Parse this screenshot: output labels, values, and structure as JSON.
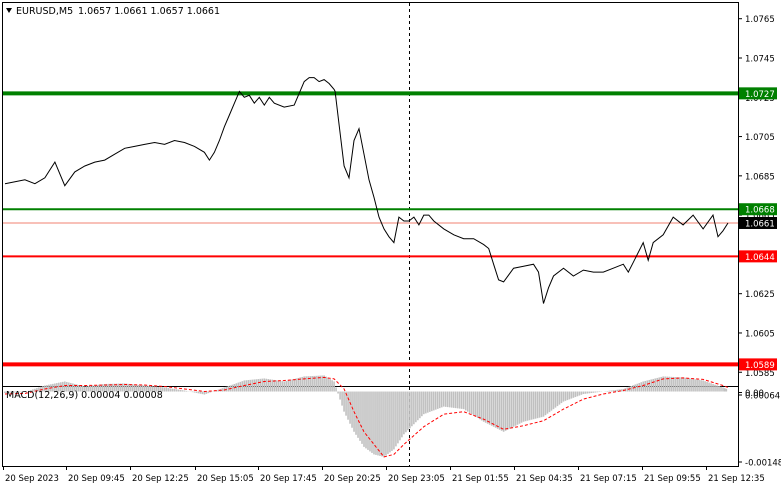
{
  "header": {
    "symbol_label": "EURUSD,M5",
    "ohlc_label": "1.0657 1.0661 1.0657 1.0661"
  },
  "colors": {
    "background": "#ffffff",
    "price_line": "#000000",
    "green_level": "#008000",
    "red_level": "#ff0000",
    "bid_line": "#f08070",
    "macd_hist": "#c0c0c0",
    "macd_signal": "#ff0000",
    "axis_text": "#000000",
    "separator": "#000000"
  },
  "chart_data": [
    {
      "type": "line",
      "panel": "price",
      "y_range": [
        1.0578,
        1.0773
      ],
      "price_ticks": [
        "1.0765",
        "1.0745",
        "1.0725",
        "1.0705",
        "1.0685",
        "1.0665",
        "1.0645",
        "1.0625",
        "1.0605",
        "1.0585"
      ],
      "levels": [
        {
          "label": "1.0727",
          "value": 1.0727,
          "color": "green",
          "weight": "thick"
        },
        {
          "label": "1.0668",
          "value": 1.0668,
          "color": "green",
          "weight": "thin"
        },
        {
          "label": "1.0644",
          "value": 1.0644,
          "color": "red",
          "weight": "thin"
        },
        {
          "label": "1.0589",
          "value": 1.0589,
          "color": "red",
          "weight": "thick"
        }
      ],
      "bid": {
        "label": "1.0661",
        "value": 1.0661
      },
      "x_index": [
        0,
        10,
        20,
        30,
        40,
        45,
        50,
        60,
        70,
        80,
        90,
        100,
        110,
        120,
        130,
        140,
        150,
        160,
        170,
        180,
        190,
        200,
        205,
        210,
        215,
        220,
        225,
        230,
        235,
        240,
        245,
        250,
        255,
        260,
        265,
        270,
        280,
        290,
        295,
        300,
        305,
        310,
        315,
        320,
        325,
        330,
        331,
        335,
        340,
        345,
        350,
        355,
        360,
        365,
        370,
        375,
        380,
        385,
        390,
        395,
        400,
        405,
        410,
        415,
        420,
        425,
        430,
        440,
        450,
        460,
        470,
        480,
        485,
        490,
        495,
        500,
        510,
        520,
        530,
        535,
        540,
        545,
        550,
        560,
        570,
        580,
        590,
        600,
        610,
        620,
        625,
        630,
        640,
        645,
        650,
        660,
        670,
        680,
        690,
        700,
        710,
        715,
        720,
        725
      ],
      "price": [
        1.0681,
        1.0682,
        1.0683,
        1.0681,
        1.0684,
        1.0688,
        1.0692,
        1.068,
        1.0687,
        1.069,
        1.0692,
        1.0693,
        1.0696,
        1.0699,
        1.07,
        1.0701,
        1.0702,
        1.0701,
        1.0703,
        1.0702,
        1.07,
        1.0697,
        1.0693,
        1.0697,
        1.0703,
        1.071,
        1.0716,
        1.0722,
        1.0728,
        1.0725,
        1.0726,
        1.0722,
        1.0725,
        1.0721,
        1.0725,
        1.0722,
        1.072,
        1.0721,
        1.0727,
        1.0733,
        1.0735,
        1.0735,
        1.0733,
        1.0734,
        1.0732,
        1.0729,
        1.0728,
        1.0711,
        1.069,
        1.0684,
        1.0703,
        1.0709,
        1.0696,
        1.0683,
        1.0674,
        1.0664,
        1.0658,
        1.0654,
        1.0651,
        1.0664,
        1.0662,
        1.0662,
        1.0664,
        1.066,
        1.0665,
        1.0665,
        1.0662,
        1.0658,
        1.0655,
        1.0653,
        1.0653,
        1.065,
        1.0648,
        1.064,
        1.0632,
        1.0631,
        1.0638,
        1.0639,
        1.064,
        1.0636,
        1.062,
        1.0628,
        1.0634,
        1.0638,
        1.0634,
        1.0637,
        1.0636,
        1.0636,
        1.0638,
        1.064,
        1.0636,
        1.0641,
        1.0651,
        1.0642,
        1.0651,
        1.0655,
        1.0664,
        1.066,
        1.0665,
        1.0658,
        1.0665,
        1.0654,
        1.0657,
        1.0661
      ],
      "time_ticks": [
        "20 Sep 2023",
        "20 Sep 09:45",
        "20 Sep 12:25",
        "20 Sep 15:05",
        "20 Sep 17:45",
        "20 Sep 20:25",
        "20 Sep 23:05",
        "21 Sep 01:55",
        "21 Sep 04:35",
        "21 Sep 07:15",
        "21 Sep 09:55",
        "21 Sep 12:35"
      ]
    },
    {
      "type": "area",
      "panel": "macd",
      "title": "MACD(12,26,9) 0.00004 0.00008",
      "y_range": [
        -0.00148,
        7e-05
      ],
      "y_ticks": [
        "0.00064",
        "0.00",
        "-0.00148"
      ],
      "x_index": [
        0,
        20,
        40,
        60,
        80,
        100,
        120,
        140,
        160,
        180,
        200,
        220,
        240,
        260,
        280,
        300,
        320,
        330,
        340,
        350,
        360,
        370,
        380,
        390,
        400,
        420,
        440,
        460,
        480,
        500,
        520,
        540,
        560,
        580,
        600,
        620,
        640,
        660,
        680,
        700,
        720,
        725
      ],
      "macd": [
        -3e-05,
        -1e-05,
        0.00012,
        0.0002,
        0.0001,
        0.00015,
        0.00016,
        0.00012,
        8e-05,
        2e-05,
        -6e-05,
        8e-05,
        0.00022,
        0.00026,
        0.0002,
        0.0003,
        0.00032,
        0.0002,
        -0.0004,
        -0.0008,
        -0.0011,
        -0.00125,
        -0.0013,
        -0.00115,
        -0.00085,
        -0.00045,
        -0.0003,
        -0.00035,
        -0.0006,
        -0.0008,
        -0.0006,
        -0.0005,
        -0.0002,
        -5e-05,
        0.0,
        5e-05,
        0.0002,
        0.0003,
        0.00028,
        0.00022,
        8e-05,
        4e-05
      ],
      "signal": [
        -5e-05,
        -4e-05,
        5e-05,
        0.00012,
        0.00012,
        0.00013,
        0.00014,
        0.00013,
        0.0001,
        5e-05,
        0.0,
        3e-05,
        0.00012,
        0.0002,
        0.00022,
        0.00025,
        0.00028,
        0.00025,
        5e-05,
        -0.0004,
        -0.0008,
        -0.00105,
        -0.0013,
        -0.00125,
        -0.00105,
        -0.0007,
        -0.00045,
        -0.0004,
        -0.00055,
        -0.00075,
        -0.00068,
        -0.00058,
        -0.00035,
        -0.00015,
        -5e-05,
        2e-05,
        0.00012,
        0.00025,
        0.00027,
        0.00024,
        0.00012,
        8e-05
      ]
    }
  ]
}
